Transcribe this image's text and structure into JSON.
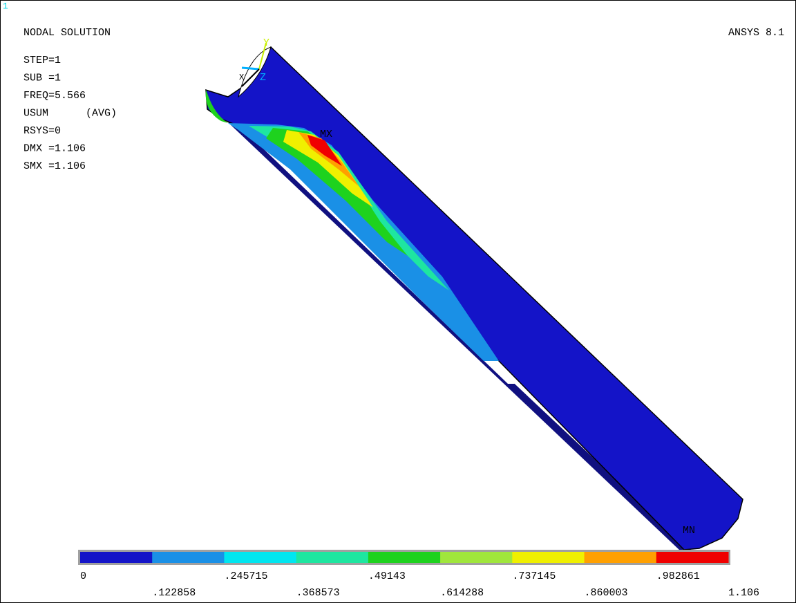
{
  "window_number": "1",
  "header": {
    "title": "NODAL SOLUTION",
    "product": "ANSYS 8.1"
  },
  "info": [
    "STEP=1",
    "SUB =1",
    "FREQ=5.566",
    "USUM      (AVG)",
    "RSYS=0",
    "DMX =1.106",
    "SMX =1.106"
  ],
  "markers": {
    "max": "MX",
    "min": "MN"
  },
  "triad": {
    "y": "Y",
    "z": "Z",
    "x": "X"
  },
  "legend": {
    "colors": [
      "#1414c8",
      "#1a90e6",
      "#00e6f0",
      "#1ee6a0",
      "#1ed21e",
      "#a0e63c",
      "#f0f000",
      "#ffa000",
      "#f00000"
    ],
    "labels": [
      "0",
      ".122858",
      ".245715",
      ".368573",
      ".49143",
      ".614288",
      ".737145",
      ".860003",
      ".982861",
      "1.106"
    ]
  }
}
